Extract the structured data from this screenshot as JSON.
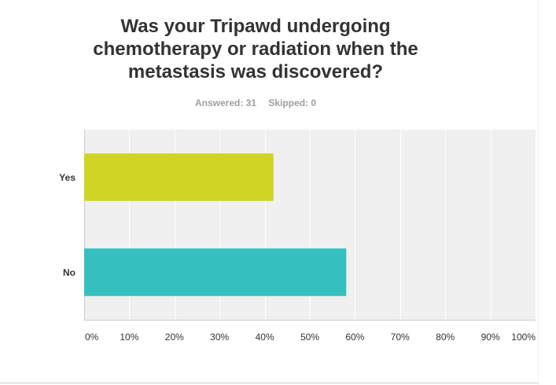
{
  "chart_data": {
    "type": "bar",
    "orientation": "horizontal",
    "title": "Was your Tripawd undergoing chemotherapy or radiation when the metastasis was discovered?",
    "categories": [
      "Yes",
      "No"
    ],
    "values": [
      41.94,
      58.06
    ],
    "colors": [
      "#d0d525",
      "#35bfbf"
    ],
    "xlim": [
      0,
      100
    ],
    "xticks": [
      "0%",
      "10%",
      "20%",
      "30%",
      "40%",
      "50%",
      "60%",
      "70%",
      "80%",
      "90%",
      "100%"
    ],
    "grid": true,
    "background": "#f0f0f0",
    "gridline_color": "#ffffff"
  },
  "summary": {
    "answered": "Answered: 31",
    "skipped": "Skipped: 0"
  }
}
